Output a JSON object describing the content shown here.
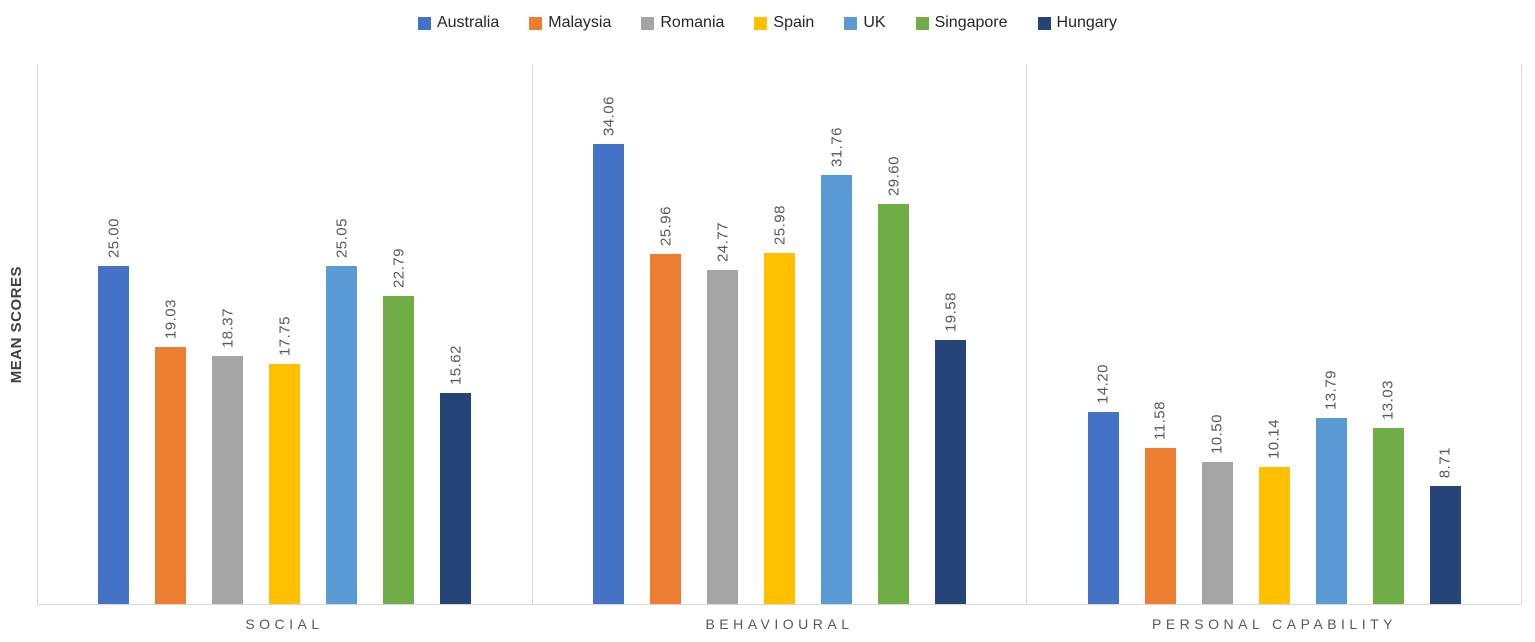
{
  "chart_data": {
    "type": "bar",
    "title": "",
    "xlabel": "",
    "ylabel": "MEAN SCORES",
    "ylim": [
      0,
      40
    ],
    "grid": false,
    "legend_position": "top",
    "data_labels": "rotated-90-two-decimals",
    "categories": [
      "SOCIAL",
      "BEHAVIOURAL",
      "PERSONAL CAPABILITY"
    ],
    "series": [
      {
        "name": "Australia",
        "color": "#4472C4",
        "values": [
          25.0,
          34.06,
          14.2
        ]
      },
      {
        "name": "Malaysia",
        "color": "#ED7D31",
        "values": [
          19.03,
          25.96,
          11.58
        ]
      },
      {
        "name": "Romania",
        "color": "#A5A5A5",
        "values": [
          18.37,
          24.77,
          10.5
        ]
      },
      {
        "name": "Spain",
        "color": "#FFC000",
        "values": [
          17.75,
          25.98,
          10.14
        ]
      },
      {
        "name": "UK",
        "color": "#5B9BD5",
        "values": [
          25.05,
          31.76,
          13.79
        ]
      },
      {
        "name": "Singapore",
        "color": "#70AD47",
        "values": [
          22.79,
          29.6,
          13.03
        ]
      },
      {
        "name": "Hungary",
        "color": "#264478",
        "values": [
          15.62,
          19.58,
          8.71
        ]
      }
    ]
  },
  "style": {
    "axis_line_color": "#D9D9D9",
    "data_label_color": "#595959",
    "category_label_color": "#595959",
    "legend_text_color": "#262626",
    "background_color": "#FFFFFF"
  }
}
